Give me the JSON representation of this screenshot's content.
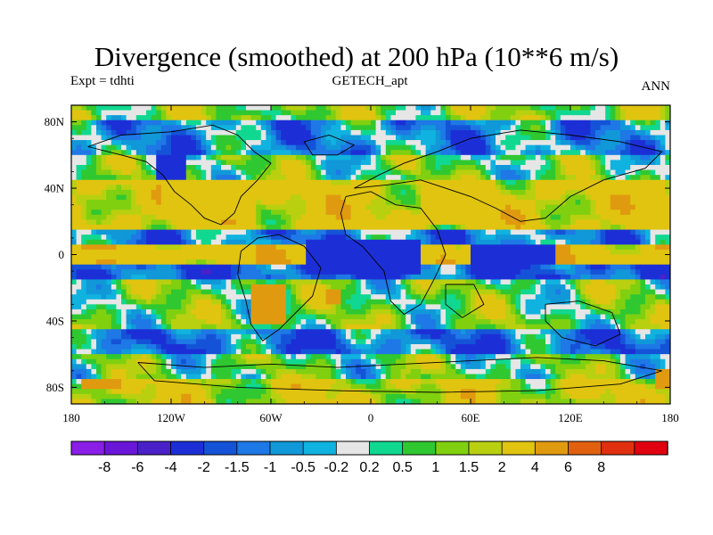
{
  "title": "Divergence (smoothed) at 200 hPa (10**6 m/s)",
  "subtitle_left": "Expt = tdhti",
  "subtitle_center": "GETECH_apt",
  "subtitle_right": "ANN",
  "axes": {
    "lon_ticks": [
      {
        "value": -180,
        "label": "180"
      },
      {
        "value": -120,
        "label": "120W"
      },
      {
        "value": -60,
        "label": "60W"
      },
      {
        "value": 0,
        "label": "0"
      },
      {
        "value": 60,
        "label": "60E"
      },
      {
        "value": 120,
        "label": "120E"
      },
      {
        "value": 180,
        "label": "180"
      }
    ],
    "lat_ticks": [
      {
        "value": 80,
        "label": "80N"
      },
      {
        "value": 40,
        "label": "40N"
      },
      {
        "value": 0,
        "label": "0"
      },
      {
        "value": -40,
        "label": "40S"
      },
      {
        "value": -80,
        "label": "80S"
      }
    ],
    "lon_range": [
      -180,
      180
    ],
    "lat_range": [
      -90,
      90
    ]
  },
  "colorbar": {
    "colors": [
      "#8a1ee6",
      "#6a16d8",
      "#4a20c8",
      "#1c2fd6",
      "#1453d8",
      "#1e78e6",
      "#1098d8",
      "#10b2e0",
      "#e6e6e6",
      "#10d890",
      "#30c830",
      "#80d010",
      "#b8d010",
      "#e0c410",
      "#e09a10",
      "#e06010",
      "#e03010",
      "#e00010"
    ],
    "labels": [
      "-8",
      "-6",
      "-4",
      "-2",
      "-1.5",
      "-1",
      "-0.5",
      "-0.2",
      "0.2",
      "0.5",
      "1",
      "1.5",
      "2",
      "4",
      "6",
      "8"
    ]
  },
  "chart_data": {
    "type": "heatmap",
    "title": "Divergence (smoothed) at 200 hPa (10**6 m/s)",
    "variable": "Divergence (smoothed) at 200 hPa",
    "units": "10**6 m/s",
    "lon_range": [
      -180,
      180
    ],
    "lat_range": [
      -90,
      90
    ],
    "contour_levels": [
      -8,
      -6,
      -4,
      -2,
      -1.5,
      -1,
      -0.5,
      -0.2,
      0.2,
      0.5,
      1,
      1.5,
      2,
      4,
      6,
      8
    ],
    "bands": [
      {
        "lat": [
          80,
          90
        ],
        "value": 1.2
      },
      {
        "lat": [
          60,
          80
        ],
        "value": -0.8
      },
      {
        "lat": [
          45,
          60
        ],
        "value": 0.7
      },
      {
        "lat": [
          15,
          45
        ],
        "value": 2.5
      },
      {
        "lat": [
          5,
          15
        ],
        "value": -1.0
      },
      {
        "lat": [
          -5,
          5
        ],
        "value": 3.0
      },
      {
        "lat": [
          -15,
          -5
        ],
        "value": -1.8
      },
      {
        "lat": [
          -45,
          -15
        ],
        "value": 0.8
      },
      {
        "lat": [
          -60,
          -45
        ],
        "value": -1.2
      },
      {
        "lat": [
          -75,
          -60
        ],
        "value": 0.6
      },
      {
        "lat": [
          -90,
          -75
        ],
        "value": 2.0
      }
    ],
    "regions": [
      {
        "lon": [
          -175,
          -150
        ],
        "lat": [
          -82,
          -76
        ],
        "value": 4.5
      },
      {
        "lon": [
          -72,
          -52
        ],
        "lat": [
          -42,
          -18
        ],
        "value": 4.5
      },
      {
        "lon": [
          -28,
          -18
        ],
        "lat": [
          -30,
          -20
        ],
        "value": 4.2
      },
      {
        "lon": [
          -125,
          -70
        ],
        "lat": [
          20,
          45
        ],
        "value": 2.6
      },
      {
        "lon": [
          30,
          75
        ],
        "lat": [
          18,
          40
        ],
        "value": 2.6
      },
      {
        "lon": [
          -180,
          -80
        ],
        "lat": [
          -3,
          3
        ],
        "value": 3.2
      },
      {
        "lon": [
          -40,
          30
        ],
        "lat": [
          -12,
          10
        ],
        "value": -3.5
      },
      {
        "lon": [
          -130,
          -110
        ],
        "lat": [
          45,
          60
        ],
        "value": -4.0
      },
      {
        "lon": [
          60,
          110
        ],
        "lat": [
          -5,
          5
        ],
        "value": -2.2
      },
      {
        "lon": [
          170,
          180
        ],
        "lat": [
          -80,
          -70
        ],
        "value": 4.5
      }
    ]
  }
}
